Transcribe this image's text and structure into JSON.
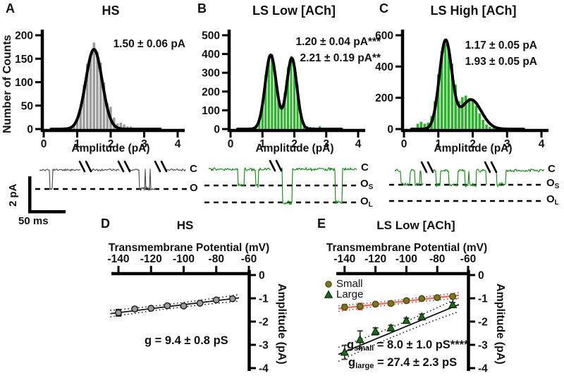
{
  "figure": {
    "panel_labels": {
      "A": "A",
      "B": "B",
      "C": "C",
      "D": "D",
      "E": "E"
    },
    "titles": {
      "A": "HS",
      "B": "LS Low [ACh]",
      "C": "LS High [ACh]",
      "D": "HS",
      "E": "LS Low [ACh]"
    },
    "stats": {
      "A": [
        "1.50 ± 0.06 pA"
      ],
      "B": [
        "1.20 ± 0.04 pA***",
        "2.21 ± 0.19 pA**"
      ],
      "C": [
        "1.17 ± 0.05 pA",
        "1.93 ± 0.05 pA"
      ]
    },
    "axis_labels": {
      "counts": "Number of Counts",
      "amplitude": "Amplitude (pA)",
      "potential": "Transmembrane Potential (mV)",
      "amplitude_iv": "Amplitude (pA)"
    },
    "trace_labels": {
      "A": {
        "closed": "C",
        "open": "O"
      },
      "B": {
        "closed": "C",
        "os_main": "O",
        "os_sub": "S",
        "ol_main": "O",
        "ol_sub": "L"
      },
      "C": {
        "closed": "C",
        "os_main": "O",
        "os_sub": "S",
        "ol_main": "O",
        "ol_sub": "L"
      }
    },
    "scale_bar": {
      "vertical": "2 pA",
      "horizontal": "50 ms"
    },
    "legend": {
      "small": "Small",
      "large": "Large"
    },
    "conductance": {
      "D": "g = 9.4 ± 0.8 pS",
      "E_small": {
        "lead": "g",
        "sub": "small",
        "rest": " = 8.0 ± 1.0 pS****"
      },
      "E_large": {
        "lead": "g",
        "sub": "large",
        "rest": " = 27.4 ± 2.3 pS"
      }
    },
    "colors": {
      "hs_bar": "#9b9b9b",
      "ls_bar": "#2cb32c",
      "trace_hs": "#4f4f4f",
      "trace_ls": "#1b8a1b",
      "small_marker": "#7c761e",
      "small_line": "#e8705f",
      "large_marker": "#1d691d",
      "fit_curve": "#000000"
    }
  },
  "chart_data": [
    {
      "id": "A",
      "type": "bar",
      "title": "HS",
      "xlabel": "Amplitude (pA)",
      "ylabel": "Number of Counts",
      "xlim": [
        0,
        4
      ],
      "ylim": [
        0,
        200
      ],
      "xticks": [
        0,
        1,
        2,
        3,
        4
      ],
      "yticks": [
        0,
        50,
        100,
        150,
        200
      ],
      "bin_width": 0.1,
      "bar_color": "#9b9b9b",
      "annotation": "1.50 ± 0.06 pA",
      "bins": [
        0.9,
        1.0,
        1.1,
        1.2,
        1.3,
        1.4,
        1.5,
        1.6,
        1.7,
        1.8,
        1.9,
        2.0,
        2.1,
        2.2,
        2.3,
        2.4,
        2.5,
        2.6
      ],
      "counts": [
        8,
        20,
        45,
        95,
        140,
        160,
        185,
        165,
        142,
        100,
        55,
        48,
        25,
        12,
        14,
        10,
        6,
        6
      ],
      "fit_curve": {
        "color": "#000000",
        "components": [
          {
            "mean": 1.5,
            "sd": 0.245,
            "amp": 170
          }
        ]
      }
    },
    {
      "id": "B",
      "type": "bar",
      "title": "LS Low [ACh]",
      "xlabel": "Amplitude (pA)",
      "ylabel": "",
      "xlim": [
        0,
        4
      ],
      "ylim": [
        0,
        500
      ],
      "xticks": [
        0,
        1,
        2,
        3,
        4
      ],
      "yticks": [
        0,
        100,
        200,
        300,
        400,
        500
      ],
      "bin_width": 0.1,
      "bar_color": "#2cb32c",
      "annotations": [
        "1.20 ± 0.04 pA***",
        "2.21 ± 0.19 pA**"
      ],
      "bins": [
        0.5,
        0.6,
        0.7,
        0.8,
        0.9,
        1.0,
        1.1,
        1.2,
        1.3,
        1.4,
        1.5,
        1.6,
        1.7,
        1.8,
        1.9,
        2.0,
        2.1,
        2.2,
        2.3,
        2.4,
        2.5,
        2.6,
        2.7,
        2.8,
        2.9
      ],
      "counts": [
        8,
        6,
        10,
        22,
        60,
        150,
        290,
        385,
        400,
        295,
        185,
        110,
        195,
        330,
        390,
        345,
        235,
        80,
        32,
        16,
        12,
        10,
        6,
        16,
        6
      ],
      "fit_curve": {
        "color": "#000000",
        "components": [
          {
            "mean": 1.26,
            "sd": 0.175,
            "amp": 395
          },
          {
            "mean": 1.92,
            "sd": 0.16,
            "amp": 378
          }
        ]
      }
    },
    {
      "id": "C",
      "type": "bar",
      "title": "LS High [ACh]",
      "xlabel": "Amplitude (pA)",
      "ylabel": "",
      "xlim": [
        0,
        4
      ],
      "ylim": [
        0,
        600
      ],
      "xticks": [
        0,
        1,
        2,
        3,
        4
      ],
      "yticks": [
        0,
        200,
        400,
        600
      ],
      "bin_width": 0.1,
      "bar_color": "#2cb32c",
      "annotations": [
        "1.17 ± 0.05 pA",
        "1.93 ± 0.05 pA"
      ],
      "bins": [
        0.3,
        0.4,
        0.5,
        0.6,
        0.7,
        0.8,
        0.9,
        1.0,
        1.1,
        1.2,
        1.3,
        1.4,
        1.5,
        1.6,
        1.7,
        1.8,
        1.9,
        2.0,
        2.1,
        2.2,
        2.3,
        2.4,
        2.5,
        2.6
      ],
      "counts": [
        10,
        35,
        48,
        35,
        42,
        85,
        180,
        350,
        500,
        545,
        520,
        420,
        285,
        180,
        205,
        215,
        200,
        195,
        150,
        100,
        60,
        30,
        15,
        8
      ],
      "fit_curve": {
        "color": "#000000",
        "components": [
          {
            "mean": 1.21,
            "sd": 0.18,
            "amp": 562
          },
          {
            "mean": 1.95,
            "sd": 0.3,
            "amp": 188
          }
        ]
      }
    },
    {
      "id": "D",
      "type": "scatter",
      "title": "HS",
      "xlabel": "Transmembrane Potential (mV)",
      "ylabel": "Amplitude (pA)",
      "xlim": [
        -150,
        -60
      ],
      "ylim": [
        -4,
        0
      ],
      "xticks": [
        -140,
        -120,
        -100,
        -80,
        -60
      ],
      "yticks": [
        0,
        -1,
        -2,
        -3,
        -4
      ],
      "annotation": "g = 9.4 ± 0.8 pS",
      "series": [
        {
          "name": "HS",
          "marker": "circle",
          "marker_color": "#9c9c9c",
          "marker_stroke": "#1a1a1a",
          "err_color": "#1a1a1a",
          "line_color": "#1a1a1a",
          "x": [
            -140,
            -130,
            -120,
            -110,
            -100,
            -90,
            -80,
            -70
          ],
          "y": [
            -1.62,
            -1.46,
            -1.43,
            -1.32,
            -1.33,
            -1.21,
            -1.07,
            -1.02
          ],
          "yerr": [
            0.14,
            0.09,
            0.06,
            0.05,
            0.05,
            0.05,
            0.06,
            0.07
          ],
          "fit": {
            "x": [
              -145,
              -66
            ],
            "y": [
              -1.66,
              -0.98
            ],
            "ci_end": 0.14,
            "ci_mid": 0.05,
            "ci_color": "#1a1a1a"
          }
        }
      ]
    },
    {
      "id": "E",
      "type": "scatter",
      "title": "LS Low [ACh]",
      "xlabel": "Transmembrane Potential (mV)",
      "ylabel": "Amplitude (pA)",
      "xlim": [
        -150,
        -60
      ],
      "ylim": [
        -4,
        0
      ],
      "xticks": [
        -140,
        -120,
        -100,
        -80,
        -60
      ],
      "yticks": [
        0,
        -1,
        -2,
        -3,
        -4
      ],
      "legend": [
        "Small",
        "Large"
      ],
      "annotations": [
        "g_small = 8.0 ± 1.0 pS****",
        "g_large = 27.4 ± 2.3 pS"
      ],
      "series": [
        {
          "name": "Small",
          "marker": "circle",
          "marker_color": "#7c761e",
          "marker_stroke": "#4a451a",
          "err_color": "#e8705f",
          "line_color": "#e8705f",
          "x": [
            -140,
            -130,
            -120,
            -110,
            -100,
            -90,
            -80,
            -70
          ],
          "y": [
            -1.38,
            -1.35,
            -1.25,
            -1.22,
            -1.1,
            -1.01,
            -0.97,
            -0.92
          ],
          "yerr": [
            0.12,
            0.14,
            0.08,
            0.07,
            0.06,
            0.05,
            0.05,
            0.06
          ],
          "fit": {
            "x": [
              -144,
              -66
            ],
            "y": [
              -1.44,
              -0.87
            ],
            "ci_end": 0.12,
            "ci_mid": 0.05,
            "ci_color": "#a04030"
          }
        },
        {
          "name": "Large",
          "marker": "triangle",
          "marker_color": "#1d691d",
          "marker_stroke": "#0c290c",
          "err_color": "#3a3a3a",
          "line_color": "#111111",
          "x": [
            -140,
            -130,
            -120,
            -110,
            -100,
            -90,
            -70
          ],
          "y": [
            -3.32,
            -2.78,
            -2.42,
            -2.28,
            -1.95,
            -1.8,
            -1.28
          ],
          "yerr": [
            0.3,
            0.38,
            0.15,
            0.12,
            0.1,
            0.12,
            0.1
          ],
          "fit": {
            "x": [
              -144,
              -66
            ],
            "y": [
              -3.41,
              -1.27
            ],
            "ci_end": 0.3,
            "ci_mid": 0.13,
            "ci_color": "#1a1a1a"
          }
        }
      ]
    }
  ]
}
